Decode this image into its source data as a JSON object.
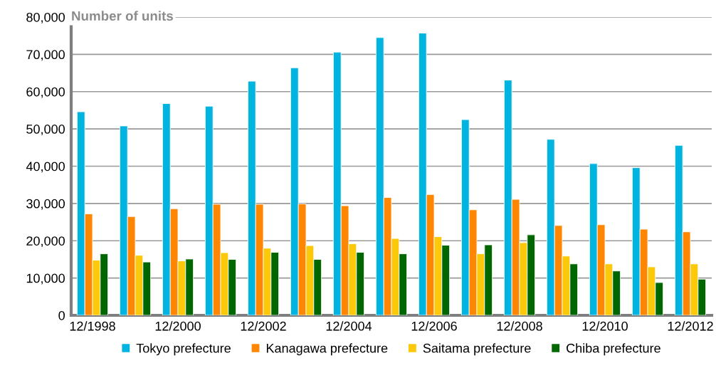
{
  "chart_data": {
    "type": "bar",
    "title": "Number of units",
    "categories": [
      "12/1998",
      null,
      "12/2000",
      null,
      "12/2002",
      null,
      "12/2004",
      null,
      "12/2006",
      null,
      "12/2008",
      null,
      "12/2010",
      null,
      "12/2012"
    ],
    "series": [
      {
        "name": "Tokyo prefecture",
        "color": "#00b4e1",
        "values": [
          54600,
          50800,
          56800,
          56100,
          62800,
          66400,
          70600,
          74500,
          75700,
          52500,
          63100,
          47200,
          40700,
          39600,
          45600
        ]
      },
      {
        "name": "Kanagawa prefecture",
        "color": "#ff8600",
        "values": [
          27200,
          26500,
          28600,
          29800,
          29800,
          29900,
          29400,
          31600,
          32400,
          28300,
          31100,
          24100,
          24300,
          23100,
          22400
        ]
      },
      {
        "name": "Saitama prefecture",
        "color": "#fcc80a",
        "values": [
          14800,
          16100,
          14600,
          16800,
          18000,
          18700,
          19200,
          20600,
          21100,
          16500,
          19500,
          15900,
          13800,
          13000,
          13800
        ]
      },
      {
        "name": "Chiba prefecture",
        "color": "#006600",
        "values": [
          16500,
          14300,
          15100,
          15000,
          16900,
          15000,
          16900,
          16500,
          18800,
          18900,
          21600,
          13800,
          11900,
          8800,
          9700
        ]
      }
    ],
    "ylim": [
      0,
      80000
    ],
    "yticks": [
      {
        "value": 0,
        "label": "0"
      },
      {
        "value": 10000,
        "label": "10,000"
      },
      {
        "value": 20000,
        "label": "20,000"
      },
      {
        "value": 30000,
        "label": "30,000"
      },
      {
        "value": 40000,
        "label": "40,000"
      },
      {
        "value": 50000,
        "label": "50,000"
      },
      {
        "value": 60000,
        "label": "60,000"
      },
      {
        "value": 70000,
        "label": "70,000"
      },
      {
        "value": 80000,
        "label": "80,000"
      }
    ],
    "grid": "y",
    "legend": "bottom"
  }
}
